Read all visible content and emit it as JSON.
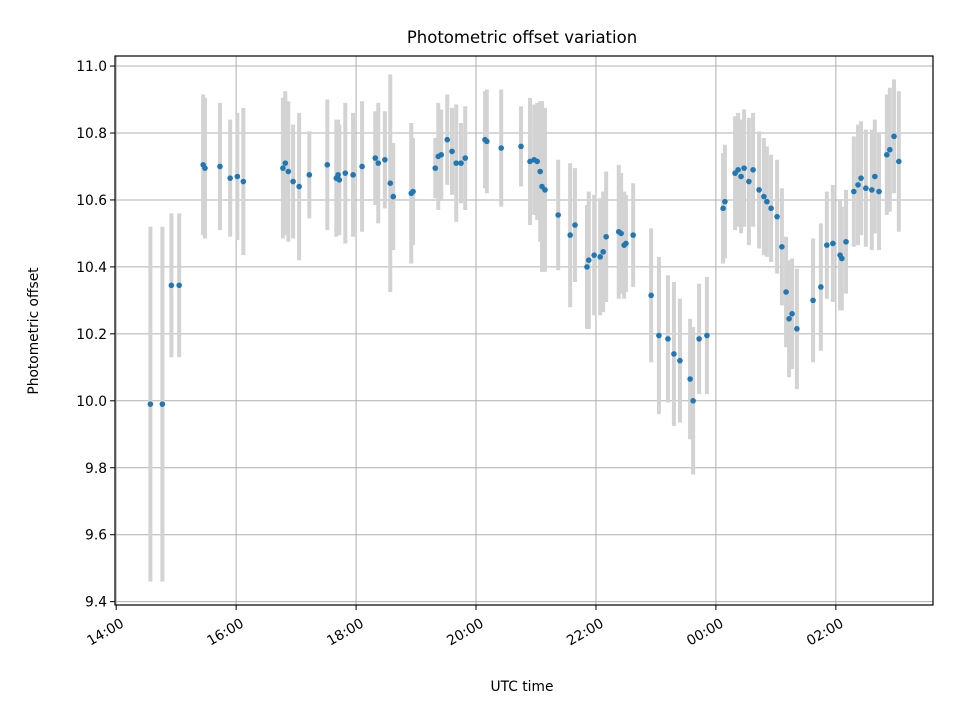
{
  "chart_data": {
    "type": "scatter",
    "title": "Photometric offset variation",
    "xlabel": "UTC time",
    "ylabel": "Photometric offset",
    "x_axis": {
      "unit": "hours since 14:00 UTC",
      "range_hours": [
        -0.02,
        13.62
      ],
      "tick_hours": [
        0,
        2,
        4,
        6,
        8,
        10,
        12
      ],
      "tick_labels": [
        "14:00",
        "16:00",
        "18:00",
        "20:00",
        "22:00",
        "00:00",
        "02:00"
      ]
    },
    "ylim": [
      9.39,
      11.03
    ],
    "y_ticks": [
      9.4,
      9.6,
      9.8,
      10.0,
      10.2,
      10.4,
      10.6,
      10.8,
      11.0
    ],
    "y_tick_labels": [
      "9.4",
      "9.6",
      "9.8",
      "10.0",
      "10.2",
      "10.4",
      "10.6",
      "10.8",
      "11.0"
    ],
    "grid": true,
    "colors": {
      "point": "#1f77b4",
      "errorbar": "#d3d3d3",
      "grid": "#b0b0b0"
    },
    "columns": [
      "t_hours_after_14_00",
      "offset",
      "error"
    ],
    "points": [
      [
        0.57,
        9.99,
        0.53
      ],
      [
        0.77,
        9.99,
        0.53
      ],
      [
        0.92,
        10.345,
        0.215
      ],
      [
        1.05,
        10.345,
        0.215
      ],
      [
        1.45,
        10.705,
        0.21
      ],
      [
        1.48,
        10.695,
        0.21
      ],
      [
        1.73,
        10.7,
        0.19
      ],
      [
        1.9,
        10.665,
        0.175
      ],
      [
        2.02,
        10.67,
        0.19
      ],
      [
        2.12,
        10.655,
        0.22
      ],
      [
        2.78,
        10.695,
        0.21
      ],
      [
        2.82,
        10.71,
        0.215
      ],
      [
        2.87,
        10.685,
        0.21
      ],
      [
        2.95,
        10.655,
        0.17
      ],
      [
        3.05,
        10.64,
        0.22
      ],
      [
        3.22,
        10.675,
        0.13
      ],
      [
        3.52,
        10.705,
        0.195
      ],
      [
        3.67,
        10.665,
        0.175
      ],
      [
        3.7,
        10.675,
        0.165
      ],
      [
        3.72,
        10.66,
        0.165
      ],
      [
        3.82,
        10.68,
        0.21
      ],
      [
        3.95,
        10.675,
        0.185
      ],
      [
        4.1,
        10.7,
        0.195
      ],
      [
        4.32,
        10.725,
        0.14
      ],
      [
        4.37,
        10.71,
        0.18
      ],
      [
        4.48,
        10.72,
        0.145
      ],
      [
        4.57,
        10.65,
        0.325
      ],
      [
        4.62,
        10.61,
        0.16
      ],
      [
        4.92,
        10.62,
        0.21
      ],
      [
        4.95,
        10.625,
        0.16
      ],
      [
        5.32,
        10.695,
        0.09
      ],
      [
        5.37,
        10.73,
        0.16
      ],
      [
        5.42,
        10.735,
        0.135
      ],
      [
        5.52,
        10.78,
        0.135
      ],
      [
        5.6,
        10.745,
        0.13
      ],
      [
        5.67,
        10.71,
        0.175
      ],
      [
        5.75,
        10.71,
        0.12
      ],
      [
        5.82,
        10.725,
        0.155
      ],
      [
        6.15,
        10.78,
        0.145
      ],
      [
        6.18,
        10.775,
        0.155
      ],
      [
        6.42,
        10.755,
        0.175
      ],
      [
        6.75,
        10.76,
        0.12
      ],
      [
        6.9,
        10.715,
        0.19
      ],
      [
        6.97,
        10.72,
        0.165
      ],
      [
        7.02,
        10.715,
        0.175
      ],
      [
        7.07,
        10.685,
        0.21
      ],
      [
        7.1,
        10.64,
        0.255
      ],
      [
        7.15,
        10.63,
        0.245
      ],
      [
        7.37,
        10.555,
        0.165
      ],
      [
        7.57,
        10.495,
        0.215
      ],
      [
        7.65,
        10.525,
        0.17
      ],
      [
        7.85,
        10.4,
        0.185
      ],
      [
        7.88,
        10.42,
        0.205
      ],
      [
        7.97,
        10.435,
        0.18
      ],
      [
        8.07,
        10.43,
        0.175
      ],
      [
        8.12,
        10.445,
        0.18
      ],
      [
        8.17,
        10.49,
        0.195
      ],
      [
        8.38,
        10.505,
        0.2
      ],
      [
        8.42,
        10.5,
        0.18
      ],
      [
        8.47,
        10.465,
        0.16
      ],
      [
        8.5,
        10.47,
        0.145
      ],
      [
        8.62,
        10.495,
        0.155
      ],
      [
        8.92,
        10.315,
        0.2
      ],
      [
        9.05,
        10.195,
        0.235
      ],
      [
        9.2,
        10.185,
        0.19
      ],
      [
        9.3,
        10.14,
        0.215
      ],
      [
        9.4,
        10.12,
        0.185
      ],
      [
        9.57,
        10.065,
        0.18
      ],
      [
        9.62,
        10.0,
        0.22
      ],
      [
        9.72,
        10.185,
        0.165
      ],
      [
        9.85,
        10.195,
        0.175
      ],
      [
        10.12,
        10.575,
        0.165
      ],
      [
        10.15,
        10.595,
        0.17
      ],
      [
        10.32,
        10.68,
        0.17
      ],
      [
        10.37,
        10.69,
        0.17
      ],
      [
        10.42,
        10.67,
        0.17
      ],
      [
        10.47,
        10.695,
        0.175
      ],
      [
        10.55,
        10.655,
        0.19
      ],
      [
        10.62,
        10.69,
        0.17
      ],
      [
        10.72,
        10.63,
        0.175
      ],
      [
        10.8,
        10.61,
        0.175
      ],
      [
        10.85,
        10.595,
        0.165
      ],
      [
        10.92,
        10.575,
        0.16
      ],
      [
        11.02,
        10.55,
        0.17
      ],
      [
        11.1,
        10.46,
        0.175
      ],
      [
        11.17,
        10.325,
        0.165
      ],
      [
        11.22,
        10.245,
        0.175
      ],
      [
        11.27,
        10.26,
        0.165
      ],
      [
        11.35,
        10.215,
        0.18
      ],
      [
        11.62,
        10.3,
        0.185
      ],
      [
        11.75,
        10.34,
        0.19
      ],
      [
        11.85,
        10.465,
        0.16
      ],
      [
        11.95,
        10.47,
        0.175
      ],
      [
        12.07,
        10.435,
        0.165
      ],
      [
        12.1,
        10.425,
        0.155
      ],
      [
        12.17,
        10.475,
        0.155
      ],
      [
        12.3,
        10.625,
        0.165
      ],
      [
        12.37,
        10.645,
        0.18
      ],
      [
        12.42,
        10.665,
        0.17
      ],
      [
        12.5,
        10.635,
        0.175
      ],
      [
        12.6,
        10.63,
        0.18
      ],
      [
        12.65,
        10.67,
        0.17
      ],
      [
        12.72,
        10.625,
        0.175
      ],
      [
        12.85,
        10.735,
        0.18
      ],
      [
        12.9,
        10.75,
        0.185
      ],
      [
        12.97,
        10.79,
        0.17
      ],
      [
        13.05,
        10.715,
        0.21
      ]
    ]
  }
}
